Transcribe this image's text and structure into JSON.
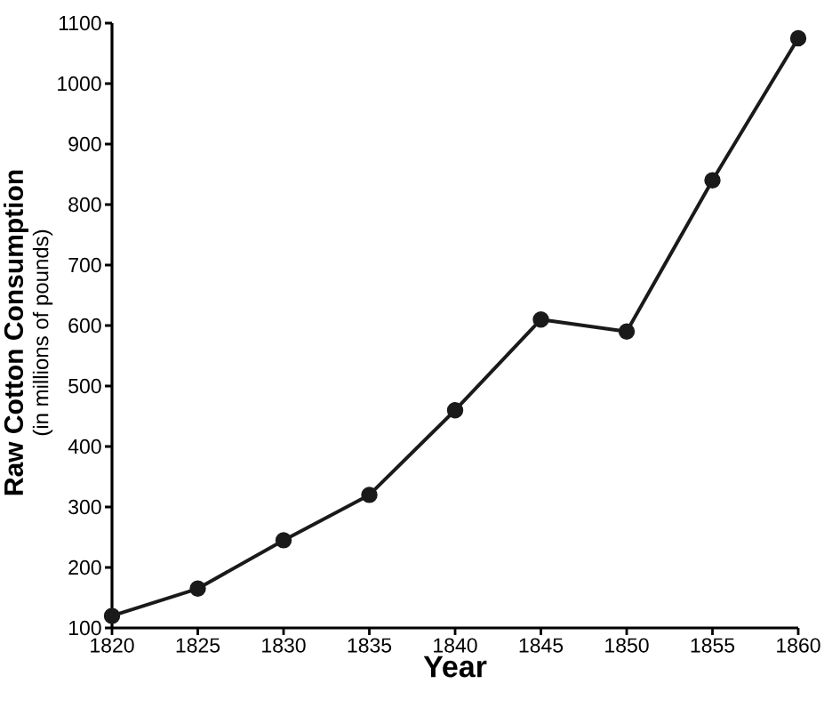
{
  "chart_data": {
    "type": "line",
    "xlabel": "Year",
    "ylabel": "Raw Cotton Consumption",
    "annotations": [
      "(in millions of pounds)"
    ],
    "x": [
      1820,
      1825,
      1830,
      1835,
      1840,
      1845,
      1850,
      1855,
      1860
    ],
    "series": [
      {
        "color": "#1a1a1a",
        "values": [
          120,
          165,
          245,
          320,
          460,
          610,
          590,
          840,
          1075
        ]
      }
    ],
    "xlim": [
      1820,
      1860
    ],
    "xticks": [
      1820,
      1825,
      1830,
      1835,
      1840,
      1845,
      1850,
      1855,
      1860
    ],
    "ylim": [
      100,
      1100
    ],
    "yticks": [
      100,
      200,
      300,
      400,
      500,
      600,
      700,
      800,
      900,
      1000,
      1100
    ],
    "grid": false,
    "marker": "circle",
    "line_style": "solid"
  }
}
